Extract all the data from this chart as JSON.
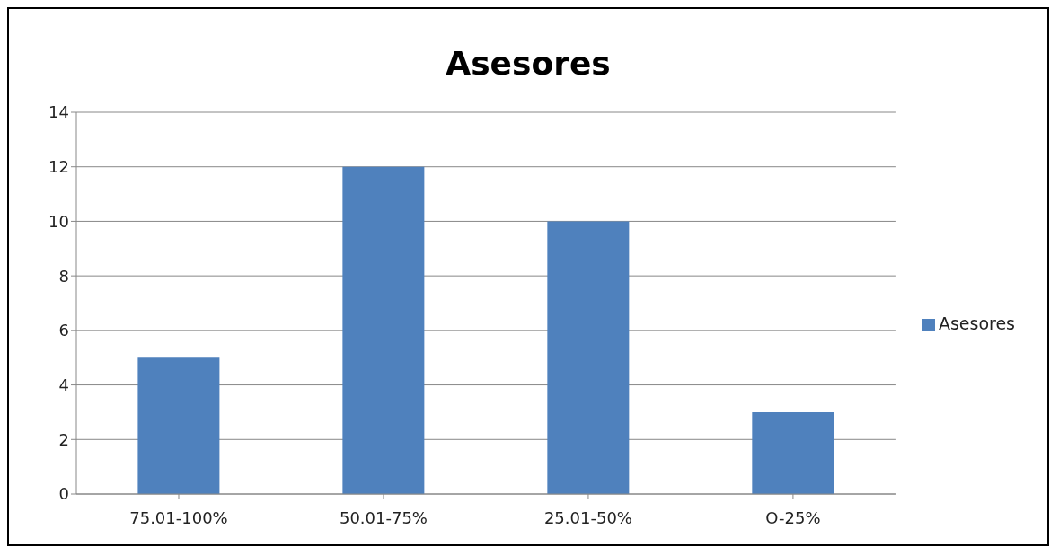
{
  "chart_data": {
    "type": "bar",
    "title": "Asesores",
    "categories": [
      "75.01-100%",
      "50.01-75%",
      "25.01-50%",
      "O-25%"
    ],
    "series": [
      {
        "name": "Asesores",
        "color": "#4f81bd",
        "values": [
          5,
          12,
          10,
          3
        ]
      }
    ],
    "ylim": [
      0,
      14
    ],
    "yticks": [
      0,
      2,
      4,
      6,
      8,
      10,
      12,
      14
    ],
    "grid": "y",
    "legend": "right"
  }
}
